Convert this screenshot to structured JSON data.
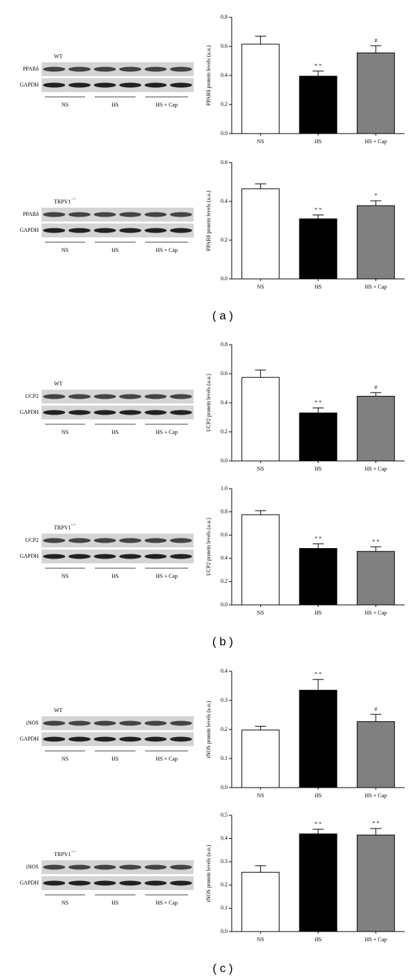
{
  "chart_data": [
    {
      "type": "bar",
      "ylabel": "PPARδ protein levels (a.u.)",
      "categories": [
        "NS",
        "HS",
        "HS + Cap"
      ],
      "values": [
        0.615,
        0.395,
        0.555
      ],
      "errors": [
        0.055,
        0.035,
        0.05
      ],
      "annotations": [
        null,
        "* *",
        "#"
      ],
      "colors": [
        "#ffffff",
        "#000000",
        "#808080"
      ],
      "ylim": [
        0,
        0.8
      ],
      "yticks": [
        {
          "value": 0,
          "label": "0.0"
        },
        0.2,
        0.4,
        0.6,
        0.8
      ]
    },
    {
      "type": "bar",
      "ylabel": "PPARδ protein levels (a.u.)",
      "categories": [
        "NS",
        "HS",
        "HS + Cap"
      ],
      "values": [
        0.465,
        0.31,
        0.378
      ],
      "errors": [
        0.025,
        0.02,
        0.025
      ],
      "annotations": [
        null,
        "* *",
        "*"
      ],
      "colors": [
        "#ffffff",
        "#000000",
        "#808080"
      ],
      "ylim": [
        0,
        0.6
      ],
      "yticks": [
        {
          "value": 0,
          "label": "0.0"
        },
        0.2,
        0.4,
        0.6
      ]
    },
    {
      "type": "bar",
      "ylabel": "UCP2 protein levels (a.u.)",
      "categories": [
        "NS",
        "HS",
        "HS + Cap"
      ],
      "values": [
        0.575,
        0.33,
        0.445
      ],
      "errors": [
        0.05,
        0.035,
        0.025
      ],
      "annotations": [
        null,
        "* *",
        "#"
      ],
      "colors": [
        "#ffffff",
        "#000000",
        "#808080"
      ],
      "ylim": [
        0,
        0.8
      ],
      "yticks": [
        {
          "value": 0,
          "label": "0.0"
        },
        0.2,
        0.4,
        0.6,
        0.8
      ]
    },
    {
      "type": "bar",
      "ylabel": "UCP2 protein levels (a.u.)",
      "categories": [
        "NS",
        "HS",
        "HS + Cap"
      ],
      "values": [
        0.775,
        0.485,
        0.46
      ],
      "errors": [
        0.035,
        0.04,
        0.04
      ],
      "annotations": [
        null,
        "* *",
        "* *"
      ],
      "colors": [
        "#ffffff",
        "#000000",
        "#808080"
      ],
      "ylim": [
        0,
        1.0
      ],
      "yticks": [
        {
          "value": 0,
          "label": "0.0"
        },
        0.2,
        0.4,
        0.6,
        0.8,
        {
          "value": 1.0,
          "label": "1.0"
        }
      ]
    },
    {
      "type": "bar",
      "ylabel": "iNOS protein levels (a.u.)",
      "categories": [
        "NS",
        "HS",
        "HS + Cap"
      ],
      "values": [
        0.198,
        0.335,
        0.227
      ],
      "errors": [
        0.013,
        0.037,
        0.025
      ],
      "annotations": [
        null,
        "* *",
        "#"
      ],
      "colors": [
        "#ffffff",
        "#000000",
        "#808080"
      ],
      "ylim": [
        0,
        0.4
      ],
      "yticks": [
        {
          "value": 0,
          "label": "0.0"
        },
        0.1,
        0.2,
        0.3,
        0.4
      ]
    },
    {
      "type": "bar",
      "ylabel": "iNOS protein levels (a.u.)",
      "categories": [
        "NS",
        "HS",
        "HS + Cap"
      ],
      "values": [
        0.255,
        0.42,
        0.415
      ],
      "errors": [
        0.028,
        0.02,
        0.028
      ],
      "annotations": [
        null,
        "* *",
        "* *"
      ],
      "colors": [
        "#ffffff",
        "#000000",
        "#808080"
      ],
      "ylim": [
        0,
        0.5
      ],
      "yticks": [
        {
          "value": 0,
          "label": "0.0"
        },
        0.1,
        0.2,
        0.3,
        0.4,
        0.5
      ]
    }
  ],
  "blots": [
    {
      "genotype": "WT",
      "protein": "PPARδ",
      "control": "GAPDH",
      "groups": [
        "NS",
        "HS",
        "HS + Cap"
      ]
    },
    {
      "genotype": "TRPV1",
      "genotype_sup": "−/−",
      "protein": "PPARδ",
      "control": "GAPDH",
      "groups": [
        "NS",
        "HS",
        "HS + Cap"
      ]
    },
    {
      "genotype": "WT",
      "protein": "UCP2",
      "control": "GAPDH",
      "groups": [
        "NS",
        "HS",
        "HS + Cap"
      ]
    },
    {
      "genotype": "TRPV1",
      "genotype_sup": "−/−",
      "protein": "UCP2",
      "control": "GAPDH",
      "groups": [
        "NS",
        "HS",
        "HS + Cap"
      ]
    },
    {
      "genotype": "WT",
      "protein": "iNOS",
      "control": "GAPDH",
      "groups": [
        "NS",
        "HS",
        "HS + Cap"
      ]
    },
    {
      "genotype": "TRPV1",
      "genotype_sup": "−/−",
      "protein": "iNOS",
      "control": "GAPDH",
      "groups": [
        "NS",
        "HS",
        "HS + Cap"
      ]
    }
  ],
  "panel_labels": [
    "( a )",
    "( b )",
    "( c )"
  ]
}
